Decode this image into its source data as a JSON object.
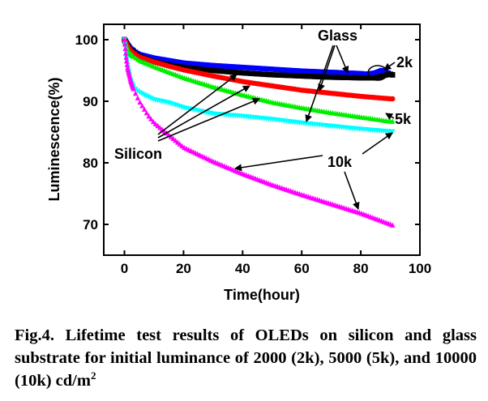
{
  "chart_data": {
    "type": "scatter",
    "xlabel": "Time(hour)",
    "ylabel": "Luminescence(%)",
    "xlim": [
      -7,
      100
    ],
    "ylim": [
      65,
      102.5
    ],
    "xticks": [
      0,
      20,
      40,
      60,
      80,
      100
    ],
    "yticks": [
      70,
      80,
      90,
      100
    ],
    "series": [
      {
        "name": "Glass 2k",
        "color": "#0000ff",
        "marker": "square",
        "x": [
          0,
          1,
          2,
          5,
          10,
          15,
          20,
          30,
          40,
          50,
          60,
          70,
          80,
          82,
          85,
          87,
          88,
          90,
          91
        ],
        "y": [
          100,
          99.2,
          98.5,
          97.6,
          97.0,
          96.6,
          96.2,
          95.8,
          95.5,
          95.2,
          94.9,
          94.7,
          94.5,
          94.4,
          94.6,
          95.0,
          94.9,
          94.4,
          94.2
        ]
      },
      {
        "name": "Silicon 2k",
        "color": "#000000",
        "marker": "square",
        "x": [
          0,
          1,
          2,
          5,
          10,
          15,
          20,
          30,
          40,
          50,
          60,
          70,
          80,
          85,
          88,
          90,
          91
        ],
        "y": [
          100,
          99.0,
          98.3,
          97.3,
          96.4,
          95.9,
          95.5,
          95.0,
          94.6,
          94.3,
          94.1,
          93.9,
          93.8,
          93.8,
          94.2,
          94.4,
          94.3
        ]
      },
      {
        "name": "Glass 5k",
        "color": "#ff0000",
        "marker": "circle",
        "x": [
          0,
          1,
          2,
          5,
          10,
          15,
          20,
          30,
          40,
          50,
          60,
          70,
          80,
          90,
          91
        ],
        "y": [
          100,
          99.0,
          98.2,
          97.2,
          96.4,
          95.7,
          95.1,
          94.1,
          93.2,
          92.5,
          91.8,
          91.3,
          90.8,
          90.4,
          90.4
        ]
      },
      {
        "name": "Silicon 5k",
        "color": "#00ee00",
        "marker": "triangle-up",
        "x": [
          0,
          1,
          2,
          5,
          10,
          15,
          20,
          30,
          40,
          50,
          60,
          70,
          80,
          90,
          91
        ],
        "y": [
          100,
          98.6,
          97.6,
          96.6,
          95.6,
          94.7,
          93.8,
          92.3,
          91.0,
          89.8,
          88.9,
          88.1,
          87.4,
          86.7,
          86.7
        ]
      },
      {
        "name": "Glass 10k",
        "color": "#00ffff",
        "marker": "triangle-down",
        "x": [
          0,
          1,
          2,
          3,
          5,
          7,
          10,
          15,
          20,
          30,
          40,
          50,
          60,
          70,
          80,
          90,
          91
        ],
        "y": [
          100,
          96.0,
          93.5,
          92.3,
          91.5,
          91.0,
          90.3,
          89.8,
          89.0,
          88.0,
          87.6,
          87.1,
          86.5,
          86.0,
          85.5,
          85.1,
          85.1
        ]
      },
      {
        "name": "Silicon 10k",
        "color": "#ff00ff",
        "marker": "triangle-up",
        "x": [
          0,
          0.5,
          1,
          2,
          3,
          5,
          8,
          10,
          15,
          20,
          30,
          40,
          50,
          60,
          70,
          80,
          90,
          91
        ],
        "y": [
          100,
          97.5,
          95.5,
          93.5,
          92.0,
          90.0,
          87.7,
          86.5,
          84.5,
          82.5,
          80.2,
          78.2,
          76.4,
          74.8,
          73.3,
          71.8,
          70.0,
          69.8
        ]
      }
    ],
    "annotations": {
      "glass": "Glass",
      "silicon": "Silicon",
      "k2": "2k",
      "k5": "5k",
      "k10": "10k"
    }
  },
  "caption": {
    "main": "Fig.4. Lifetime test results of OLEDs on silicon and glass substrate for initial luminance of 2000 (2k), 5000 (5k), and 10000 (10k) cd/m",
    "superscript": "2"
  }
}
